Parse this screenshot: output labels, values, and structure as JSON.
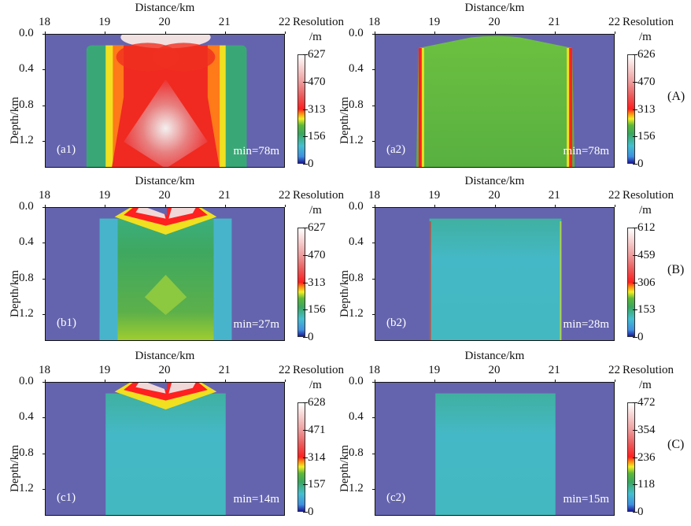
{
  "figure_labels": [
    "(A)",
    "(B)",
    "(C)"
  ],
  "chart_data": [
    {
      "type": "heatmap",
      "panel": "(a1)",
      "xlabel": "Distance/km",
      "ylabel": "Depth/km",
      "x_ticks": [
        "18",
        "19",
        "20",
        "21",
        "22"
      ],
      "y_ticks": [
        "0.0",
        "0.4",
        "0.8",
        "1.2"
      ],
      "xlim": [
        18,
        22
      ],
      "ylim": [
        0,
        1.5
      ],
      "colorbar_title": "Resolution",
      "colorbar_unit": "/m",
      "colorbar_ticks": [
        "627",
        "470",
        "313",
        "156",
        "0"
      ],
      "colorbar_range": [
        0,
        627
      ],
      "annotation": "min=78m"
    },
    {
      "type": "heatmap",
      "panel": "(a2)",
      "xlabel": "Distance/km",
      "ylabel": "Depth/km",
      "x_ticks": [
        "18",
        "19",
        "20",
        "21",
        "22"
      ],
      "y_ticks": [
        "0.0",
        "0.4",
        "0.8",
        "1.2"
      ],
      "xlim": [
        18,
        22
      ],
      "ylim": [
        0,
        1.5
      ],
      "colorbar_title": "Resolution",
      "colorbar_unit": "/m",
      "colorbar_ticks": [
        "626",
        "470",
        "313",
        "156",
        "0"
      ],
      "colorbar_range": [
        0,
        626
      ],
      "annotation": "min=78m"
    },
    {
      "type": "heatmap",
      "panel": "(b1)",
      "xlabel": "Distance/km",
      "ylabel": "Depth/km",
      "x_ticks": [
        "18",
        "19",
        "20",
        "21",
        "22"
      ],
      "y_ticks": [
        "0.0",
        "0.4",
        "0.8",
        "1.2"
      ],
      "xlim": [
        18,
        22
      ],
      "ylim": [
        0,
        1.5
      ],
      "colorbar_title": "Resolution",
      "colorbar_unit": "/m",
      "colorbar_ticks": [
        "627",
        "470",
        "313",
        "156",
        "0"
      ],
      "colorbar_range": [
        0,
        627
      ],
      "annotation": "min=27m"
    },
    {
      "type": "heatmap",
      "panel": "(b2)",
      "xlabel": "Distance/km",
      "ylabel": "Depth/km",
      "x_ticks": [
        "18",
        "19",
        "20",
        "21",
        "22"
      ],
      "y_ticks": [
        "0.0",
        "0.4",
        "0.8",
        "1.2"
      ],
      "xlim": [
        18,
        22
      ],
      "ylim": [
        0,
        1.5
      ],
      "colorbar_title": "Resolution",
      "colorbar_unit": "/m",
      "colorbar_ticks": [
        "612",
        "459",
        "306",
        "153",
        "0"
      ],
      "colorbar_range": [
        0,
        612
      ],
      "annotation": "min=28m"
    },
    {
      "type": "heatmap",
      "panel": "(c1)",
      "xlabel": "Distance/km",
      "ylabel": "Depth/km",
      "x_ticks": [
        "18",
        "19",
        "20",
        "21",
        "22"
      ],
      "y_ticks": [
        "0.0",
        "0.4",
        "0.8",
        "1.2"
      ],
      "xlim": [
        18,
        22
      ],
      "ylim": [
        0,
        1.5
      ],
      "colorbar_title": "Resolution",
      "colorbar_unit": "/m",
      "colorbar_ticks": [
        "628",
        "471",
        "314",
        "157",
        "0"
      ],
      "colorbar_range": [
        0,
        628
      ],
      "annotation": "min=14m"
    },
    {
      "type": "heatmap",
      "panel": "(c2)",
      "xlabel": "Distance/km",
      "ylabel": "Depth/km",
      "x_ticks": [
        "18",
        "19",
        "20",
        "21",
        "22"
      ],
      "y_ticks": [
        "0.0",
        "0.4",
        "0.8",
        "1.2"
      ],
      "xlim": [
        18,
        22
      ],
      "ylim": [
        0,
        1.5
      ],
      "colorbar_title": "Resolution",
      "colorbar_unit": "/m",
      "colorbar_ticks": [
        "472",
        "354",
        "236",
        "118",
        "0"
      ],
      "colorbar_range": [
        0,
        472
      ],
      "annotation": "min=15m"
    }
  ]
}
